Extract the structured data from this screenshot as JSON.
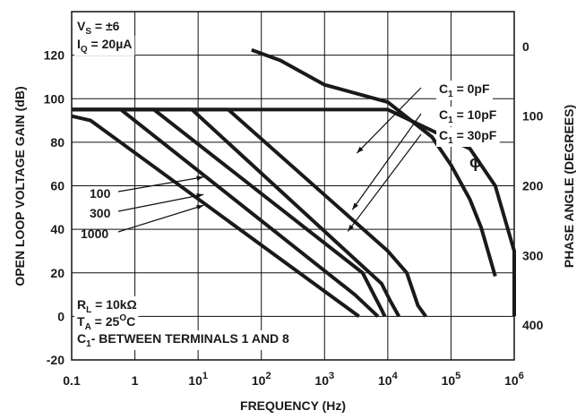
{
  "chart_data": {
    "type": "line",
    "xlabel": "FREQUENCY (Hz)",
    "ylabel": "OPEN LOOP VOLTAGE GAIN (dB)",
    "y2label": "PHASE ANGLE (DEGREES)",
    "xscale": "log",
    "xlim": [
      0.1,
      1000000
    ],
    "ylim": [
      -20,
      140
    ],
    "y2lim_inverted": [
      -50,
      450
    ],
    "grid": true,
    "x_ticks": [
      {
        "value": 0.1,
        "base": "0.1",
        "exp": ""
      },
      {
        "value": 1,
        "base": "1",
        "exp": ""
      },
      {
        "value": 10,
        "base": "10",
        "exp": "1"
      },
      {
        "value": 100,
        "base": "10",
        "exp": "2"
      },
      {
        "value": 1000,
        "base": "10",
        "exp": "3"
      },
      {
        "value": 10000,
        "base": "10",
        "exp": "4"
      },
      {
        "value": 100000,
        "base": "10",
        "exp": "5"
      },
      {
        "value": 1000000,
        "base": "10",
        "exp": "6"
      }
    ],
    "y_ticks": [
      {
        "value": 120,
        "label": "120"
      },
      {
        "value": 100,
        "label": "100"
      },
      {
        "value": 80,
        "label": "80"
      },
      {
        "value": 60,
        "label": "60"
      },
      {
        "value": 40,
        "label": "40"
      },
      {
        "value": 20,
        "label": "20"
      },
      {
        "value": 0,
        "label": "0"
      },
      {
        "value": -20,
        "label": "-20"
      }
    ],
    "y2_ticks": [
      {
        "value": 0,
        "label": "0"
      },
      {
        "value": 100,
        "label": "100"
      },
      {
        "value": 200,
        "label": "200"
      },
      {
        "value": 300,
        "label": "300"
      },
      {
        "value": 400,
        "label": "400"
      }
    ],
    "conditions_top": [
      {
        "base": "V",
        "sub": "S",
        "rest": " = ±6"
      },
      {
        "base": "I",
        "sub": "Q",
        "rest": " = 20µA"
      }
    ],
    "conditions_bottom": [
      {
        "base": "R",
        "sub": "L",
        "rest": " = 10kΩ",
        "sup": ""
      },
      {
        "base": "T",
        "sub": "A",
        "rest": " = 25",
        "sup": "O",
        "tail": "C"
      },
      {
        "base": "C",
        "sub": "1",
        "rest": "- BETWEEN TERMINALS 1 AND 8",
        "sup": ""
      }
    ],
    "series": [
      {
        "name": "C1 = 0pF",
        "axis": "gain",
        "points": [
          [
            0.1,
            95
          ],
          [
            10000,
            95
          ],
          [
            200000,
            77
          ],
          [
            500000,
            60
          ],
          [
            1500000,
            30
          ],
          [
            2000000,
            0
          ]
        ]
      },
      {
        "name": "C1 = 10pF",
        "axis": "gain",
        "points": [
          [
            0.1,
            95
          ],
          [
            30,
            95
          ],
          [
            10000,
            30
          ],
          [
            20000,
            20
          ],
          [
            30000,
            5
          ],
          [
            40000,
            0
          ]
        ]
      },
      {
        "name": "C1 = 30pF",
        "axis": "gain",
        "points": [
          [
            0.1,
            95
          ],
          [
            8,
            95
          ],
          [
            8000,
            15
          ],
          [
            11000,
            7
          ],
          [
            15000,
            0
          ]
        ]
      },
      {
        "name": "100",
        "axis": "gain",
        "points": [
          [
            0.1,
            95
          ],
          [
            2,
            95
          ],
          [
            4000,
            20
          ],
          [
            8000,
            3
          ],
          [
            9000,
            0
          ]
        ]
      },
      {
        "name": "300",
        "axis": "gain",
        "points": [
          [
            0.1,
            95
          ],
          [
            0.6,
            95
          ],
          [
            3000,
            10
          ],
          [
            7000,
            0
          ]
        ]
      },
      {
        "name": "1000",
        "axis": "gain",
        "points": [
          [
            0.1,
            92
          ],
          [
            0.2,
            90
          ],
          [
            3500,
            0
          ]
        ]
      },
      {
        "name": "ϕ",
        "axis": "phase",
        "points": [
          [
            70,
            5
          ],
          [
            200,
            20
          ],
          [
            1000,
            55
          ],
          [
            10000,
            80
          ],
          [
            50000,
            130
          ],
          [
            100000,
            170
          ],
          [
            200000,
            220
          ],
          [
            300000,
            260
          ],
          [
            500000,
            330
          ]
        ]
      }
    ],
    "annotations": [
      {
        "text": "C1 = 0pF",
        "base": "C",
        "sub": "1",
        "rest": " = 0pF",
        "target": [
          1000,
          75
        ]
      },
      {
        "text": "C1 = 10pF",
        "base": "C",
        "sub": "1",
        "rest": " = 10pF",
        "target": [
          1000,
          49
        ]
      },
      {
        "text": "C1 = 30pF",
        "base": "C",
        "sub": "1",
        "rest": " = 30pF",
        "target": [
          1000,
          39
        ]
      },
      {
        "text": "100",
        "target": [
          10,
          64
        ]
      },
      {
        "text": "300",
        "target": [
          10,
          56
        ]
      },
      {
        "text": "1000",
        "target": [
          10,
          51
        ]
      },
      {
        "text": "ϕ"
      }
    ]
  }
}
